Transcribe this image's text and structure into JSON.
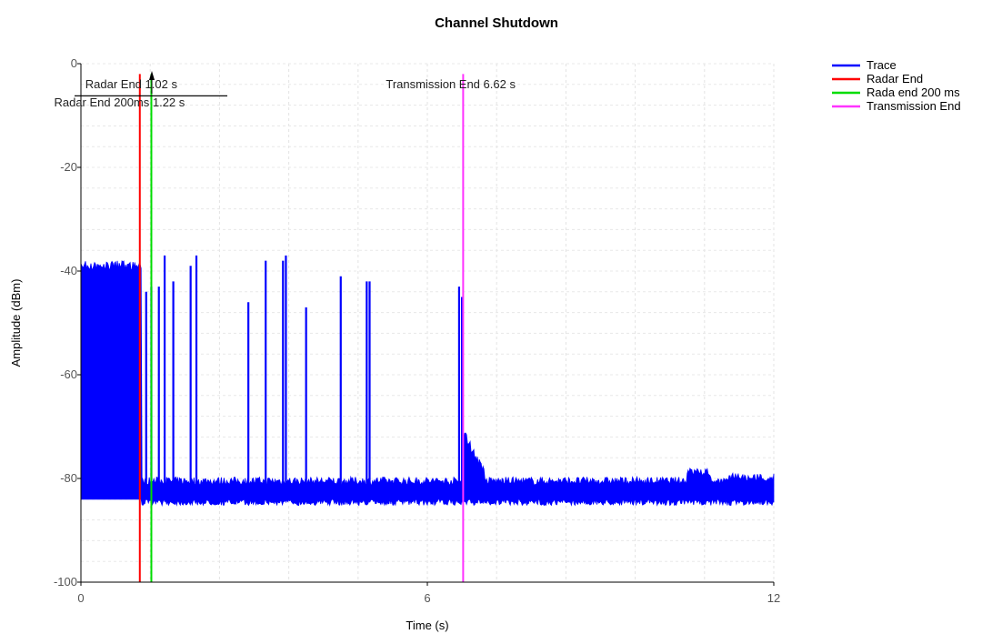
{
  "chart_data": {
    "type": "line",
    "title": "Channel Shutdown",
    "xlabel": "Time (s)",
    "ylabel": "Amplitude (dBm)",
    "xlim": [
      0,
      12
    ],
    "ylim": [
      -100,
      0
    ],
    "x_ticks": [
      0,
      6,
      12
    ],
    "y_ticks": [
      0,
      -20,
      -40,
      -60,
      -80,
      -100
    ],
    "grid": true,
    "legend_position": "top-right",
    "series": [
      {
        "name": "Trace",
        "color": "#0000ff",
        "noise_floor_band": [
          -84,
          -81
        ],
        "dense_burst": {
          "x_range": [
            0,
            1.05
          ],
          "y_range": [
            -84,
            -38
          ]
        },
        "spikes": [
          {
            "x": 1.13,
            "y": -44
          },
          {
            "x": 1.22,
            "y": -43
          },
          {
            "x": 1.35,
            "y": -43
          },
          {
            "x": 1.45,
            "y": -37
          },
          {
            "x": 1.6,
            "y": -42
          },
          {
            "x": 1.9,
            "y": -39
          },
          {
            "x": 2.0,
            "y": -37
          },
          {
            "x": 2.9,
            "y": -46
          },
          {
            "x": 3.2,
            "y": -38
          },
          {
            "x": 3.5,
            "y": -38
          },
          {
            "x": 3.55,
            "y": -37
          },
          {
            "x": 3.9,
            "y": -47
          },
          {
            "x": 4.5,
            "y": -41
          },
          {
            "x": 4.95,
            "y": -42
          },
          {
            "x": 5.0,
            "y": -42
          },
          {
            "x": 6.55,
            "y": -43
          },
          {
            "x": 6.6,
            "y": -45
          }
        ],
        "late_bumps": [
          {
            "x_range": [
              10.5,
              10.9
            ],
            "y": -78
          },
          {
            "x_range": [
              11.2,
              12.0
            ],
            "y": -79
          }
        ]
      },
      {
        "name": "Radar End",
        "color": "#ff0000",
        "x": 1.02
      },
      {
        "name": "Rada end 200 ms",
        "color": "#00dd00",
        "x": 1.22
      },
      {
        "name": "Transmission End",
        "color": "#ff33ff",
        "x": 6.62
      }
    ],
    "annotations": [
      {
        "text": "Radar End 1.02 s",
        "x": 1.02,
        "y": -4
      },
      {
        "text": "Radar End 200ms 1.22 s",
        "x": 1.22,
        "y": -7.5
      },
      {
        "text": "Transmission End 6.62 s",
        "x": 6.62,
        "y": -4
      }
    ]
  }
}
